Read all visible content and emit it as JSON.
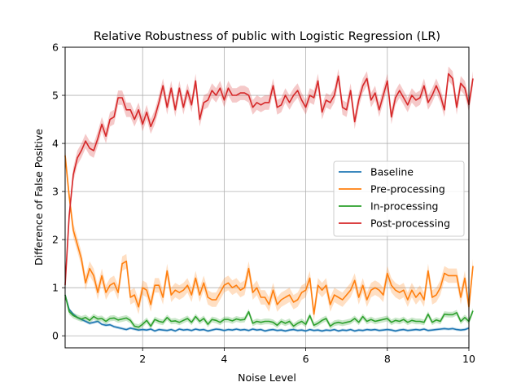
{
  "chart_data": {
    "type": "line",
    "title": "Relative Robustness of public with Logistic Regression (LR)",
    "xlabel": "Noise Level",
    "ylabel": "Difference of False Positive",
    "xlim": [
      0.1,
      10
    ],
    "ylim": [
      -0.25,
      6
    ],
    "xticks": [
      2,
      4,
      6,
      8,
      10
    ],
    "yticks": [
      0,
      1,
      2,
      3,
      4,
      5,
      6
    ],
    "grid": true,
    "legend_position": "center-right",
    "x_start": 0.1,
    "x_step": 0.1,
    "series": [
      {
        "name": "Baseline",
        "color": "#1f77b4",
        "band": 0.03,
        "values": [
          0.85,
          0.55,
          0.45,
          0.38,
          0.34,
          0.3,
          0.26,
          0.28,
          0.3,
          0.24,
          0.22,
          0.23,
          0.19,
          0.17,
          0.15,
          0.13,
          0.16,
          0.14,
          0.12,
          0.13,
          0.12,
          0.14,
          0.1,
          0.13,
          0.12,
          0.11,
          0.13,
          0.1,
          0.14,
          0.12,
          0.13,
          0.11,
          0.14,
          0.12,
          0.13,
          0.1,
          0.12,
          0.14,
          0.13,
          0.11,
          0.13,
          0.12,
          0.14,
          0.12,
          0.13,
          0.11,
          0.14,
          0.12,
          0.13,
          0.1,
          0.12,
          0.13,
          0.11,
          0.12,
          0.1,
          0.12,
          0.13,
          0.11,
          0.12,
          0.1,
          0.13,
          0.11,
          0.12,
          0.1,
          0.12,
          0.11,
          0.13,
          0.1,
          0.12,
          0.11,
          0.13,
          0.1,
          0.12,
          0.11,
          0.13,
          0.12,
          0.13,
          0.11,
          0.12,
          0.13,
          0.12,
          0.1,
          0.12,
          0.13,
          0.11,
          0.12,
          0.13,
          0.12,
          0.14,
          0.11,
          0.12,
          0.13,
          0.14,
          0.15,
          0.14,
          0.15,
          0.13,
          0.12,
          0.13,
          0.16
        ]
      },
      {
        "name": "Pre-processing",
        "color": "#ff7f0e",
        "band": 0.15,
        "values": [
          3.75,
          2.9,
          2.2,
          1.9,
          1.6,
          1.1,
          1.4,
          1.25,
          0.9,
          1.25,
          0.9,
          1.05,
          1.1,
          0.9,
          1.5,
          1.55,
          0.8,
          0.85,
          0.6,
          1.0,
          0.95,
          0.65,
          1.05,
          1.05,
          0.8,
          1.35,
          0.85,
          0.95,
          0.9,
          0.95,
          1.05,
          0.85,
          1.2,
          0.85,
          1.1,
          0.8,
          0.75,
          0.75,
          0.9,
          1.05,
          1.1,
          1.0,
          1.05,
          0.95,
          1.0,
          1.4,
          0.9,
          1.0,
          0.8,
          0.8,
          0.65,
          0.95,
          0.65,
          0.75,
          0.8,
          0.85,
          0.7,
          0.75,
          0.9,
          0.95,
          1.2,
          0.45,
          1.05,
          0.95,
          1.05,
          0.65,
          0.85,
          0.8,
          0.75,
          0.85,
          0.95,
          1.15,
          0.8,
          1.05,
          0.75,
          0.95,
          1.0,
          0.95,
          0.85,
          1.3,
          1.05,
          0.95,
          0.9,
          0.95,
          0.75,
          0.95,
          0.8,
          0.9,
          0.75,
          1.35,
          0.8,
          0.85,
          1.0,
          1.3,
          1.25,
          1.25,
          1.25,
          0.8,
          1.2,
          0.6,
          1.45
        ]
      },
      {
        "name": "In-processing",
        "color": "#2ca02c",
        "band": 0.06,
        "values": [
          0.85,
          0.5,
          0.42,
          0.38,
          0.35,
          0.38,
          0.32,
          0.4,
          0.35,
          0.36,
          0.3,
          0.36,
          0.37,
          0.33,
          0.35,
          0.37,
          0.32,
          0.2,
          0.18,
          0.24,
          0.32,
          0.2,
          0.34,
          0.3,
          0.28,
          0.38,
          0.3,
          0.31,
          0.28,
          0.32,
          0.36,
          0.28,
          0.4,
          0.3,
          0.36,
          0.24,
          0.34,
          0.32,
          0.28,
          0.34,
          0.34,
          0.31,
          0.35,
          0.33,
          0.34,
          0.5,
          0.26,
          0.3,
          0.28,
          0.3,
          0.3,
          0.28,
          0.22,
          0.3,
          0.26,
          0.3,
          0.2,
          0.26,
          0.3,
          0.24,
          0.42,
          0.22,
          0.26,
          0.32,
          0.36,
          0.2,
          0.26,
          0.28,
          0.26,
          0.28,
          0.3,
          0.36,
          0.28,
          0.4,
          0.3,
          0.34,
          0.3,
          0.32,
          0.34,
          0.36,
          0.28,
          0.32,
          0.3,
          0.34,
          0.28,
          0.32,
          0.3,
          0.3,
          0.28,
          0.45,
          0.28,
          0.33,
          0.3,
          0.45,
          0.44,
          0.44,
          0.48,
          0.3,
          0.38,
          0.3,
          0.52
        ]
      },
      {
        "name": "Post-processing",
        "color": "#d62728",
        "band": 0.15,
        "values": [
          1.05,
          2.5,
          3.35,
          3.7,
          3.85,
          4.05,
          3.9,
          3.85,
          4.1,
          4.4,
          4.15,
          4.5,
          4.55,
          4.95,
          4.95,
          4.7,
          4.7,
          4.5,
          4.7,
          4.4,
          4.65,
          4.35,
          4.55,
          4.85,
          5.2,
          4.75,
          5.15,
          4.7,
          5.15,
          4.75,
          5.1,
          4.8,
          5.3,
          4.5,
          4.85,
          4.9,
          5.1,
          5.0,
          5.15,
          4.9,
          5.15,
          5.0,
          5.0,
          5.05,
          5.05,
          5.0,
          4.75,
          4.85,
          4.8,
          4.85,
          4.85,
          5.2,
          4.75,
          4.8,
          5.0,
          4.85,
          5.0,
          5.1,
          4.9,
          4.75,
          5.0,
          4.95,
          5.3,
          4.65,
          4.9,
          4.85,
          5.0,
          5.4,
          4.75,
          4.7,
          5.1,
          4.45,
          4.9,
          5.2,
          5.35,
          4.9,
          5.05,
          4.7,
          5.0,
          5.3,
          4.55,
          4.95,
          5.1,
          4.95,
          4.8,
          5.0,
          4.9,
          4.95,
          5.2,
          4.85,
          5.0,
          5.2,
          5.0,
          4.7,
          5.45,
          5.35,
          4.75,
          5.25,
          5.15,
          4.8,
          5.35
        ]
      }
    ]
  }
}
